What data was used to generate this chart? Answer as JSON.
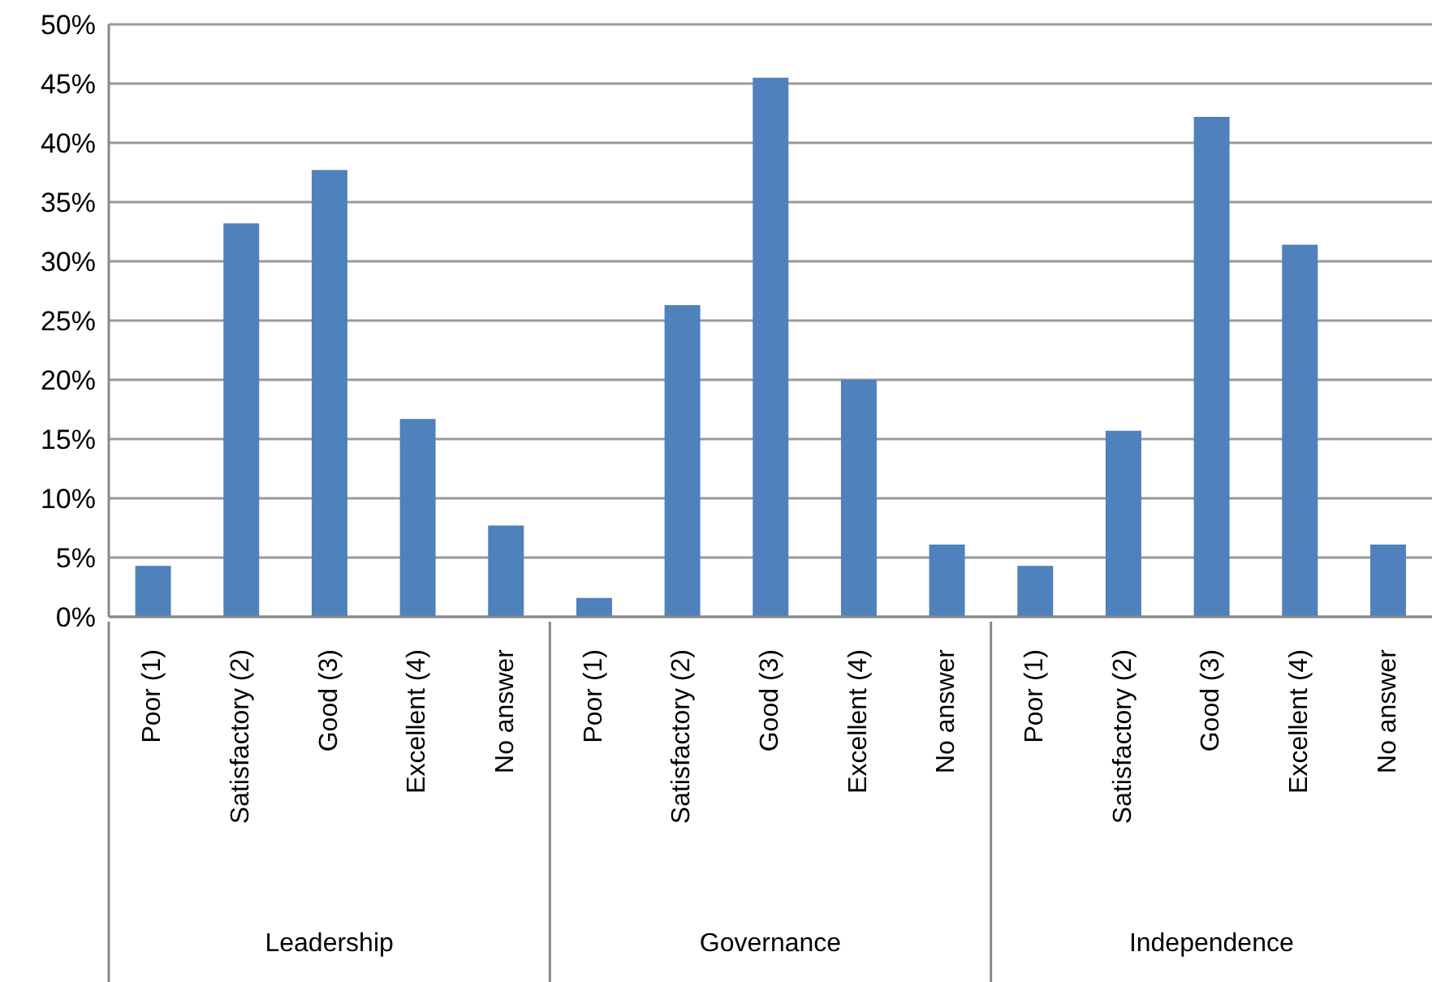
{
  "chart_data": {
    "type": "bar",
    "categories": [
      "Poor (1)",
      "Satisfactory (2)",
      "Good (3)",
      "Excellent (4)",
      "No answer",
      "Poor (1)",
      "Satisfactory (2)",
      "Good (3)",
      "Excellent (4)",
      "No answer",
      "Poor (1)",
      "Satisfactory (2)",
      "Good (3)",
      "Excellent (4)",
      "No answer"
    ],
    "values": [
      4.3,
      33.2,
      37.7,
      16.7,
      7.7,
      1.6,
      26.3,
      45.5,
      20.0,
      6.1,
      4.3,
      15.7,
      42.2,
      31.4,
      6.1
    ],
    "color": "#4f81bd",
    "annotations": [
      "Leadership",
      "Governance",
      "Independence"
    ],
    "ylim": [
      0,
      50
    ],
    "yticks": [
      {
        "value": 0,
        "label": "0%"
      },
      {
        "value": 5,
        "label": "5%"
      },
      {
        "value": 10,
        "label": "10%"
      },
      {
        "value": 15,
        "label": "15%"
      },
      {
        "value": 20,
        "label": "20%"
      },
      {
        "value": 25,
        "label": "25%"
      },
      {
        "value": 30,
        "label": "30%"
      },
      {
        "value": 35,
        "label": "35%"
      },
      {
        "value": 40,
        "label": "40%"
      },
      {
        "value": 45,
        "label": "45%"
      },
      {
        "value": 50,
        "label": "50%"
      }
    ],
    "grid": "y"
  }
}
